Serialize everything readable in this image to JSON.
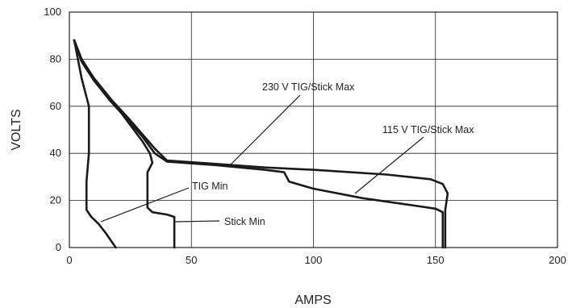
{
  "chart_data": {
    "type": "line",
    "xlabel": "AMPS",
    "ylabel": "VOLTS",
    "xlim": [
      0,
      200
    ],
    "ylim": [
      0,
      100
    ],
    "x_ticks": [
      "0",
      "50",
      "100",
      "150",
      "200"
    ],
    "y_ticks": [
      "0",
      "20",
      "40",
      "60",
      "80",
      "100"
    ],
    "grid": true,
    "series": [
      {
        "name": "230 V TIG/Stick Max",
        "points": [
          [
            2,
            88
          ],
          [
            5,
            80
          ],
          [
            10,
            72
          ],
          [
            17,
            63
          ],
          [
            25,
            54
          ],
          [
            30,
            48
          ],
          [
            35,
            42
          ],
          [
            40,
            37
          ],
          [
            60,
            35.5
          ],
          [
            80,
            34
          ],
          [
            100,
            33
          ],
          [
            130,
            31
          ],
          [
            148,
            29
          ],
          [
            153,
            27
          ],
          [
            155,
            23
          ],
          [
            154,
            16
          ],
          [
            154,
            0
          ]
        ]
      },
      {
        "name": "115 V TIG/Stick Max",
        "points": [
          [
            2,
            88
          ],
          [
            5,
            79
          ],
          [
            10,
            71
          ],
          [
            17,
            62
          ],
          [
            25,
            53
          ],
          [
            30,
            47
          ],
          [
            35,
            40
          ],
          [
            40,
            36.5
          ],
          [
            60,
            35
          ],
          [
            80,
            33
          ],
          [
            88,
            32
          ],
          [
            90,
            28
          ],
          [
            100,
            25
          ],
          [
            120,
            21
          ],
          [
            140,
            18
          ],
          [
            150,
            16.5
          ],
          [
            153,
            15
          ],
          [
            153,
            0
          ]
        ]
      },
      {
        "name": "TIG Min",
        "points": [
          [
            2,
            88
          ],
          [
            5,
            72
          ],
          [
            8,
            60
          ],
          [
            8,
            50
          ],
          [
            8,
            40
          ],
          [
            7,
            28
          ],
          [
            7,
            16
          ],
          [
            9,
            13
          ],
          [
            12,
            10
          ],
          [
            15,
            6
          ],
          [
            17,
            3
          ],
          [
            19,
            0
          ]
        ]
      },
      {
        "name": "Stick Min",
        "points": [
          [
            2,
            88
          ],
          [
            5,
            80
          ],
          [
            10,
            72
          ],
          [
            17,
            63
          ],
          [
            25,
            52
          ],
          [
            30,
            45
          ],
          [
            33,
            40
          ],
          [
            34,
            36
          ],
          [
            32,
            32
          ],
          [
            32,
            17
          ],
          [
            34,
            15
          ],
          [
            40,
            14
          ],
          [
            43,
            13
          ],
          [
            43,
            0
          ]
        ]
      }
    ],
    "annotations": [
      {
        "text": "230 V TIG/Stick Max"
      },
      {
        "text": "115 V TIG/Stick Max"
      },
      {
        "text": "TIG Min"
      },
      {
        "text": "Stick Min"
      }
    ]
  }
}
